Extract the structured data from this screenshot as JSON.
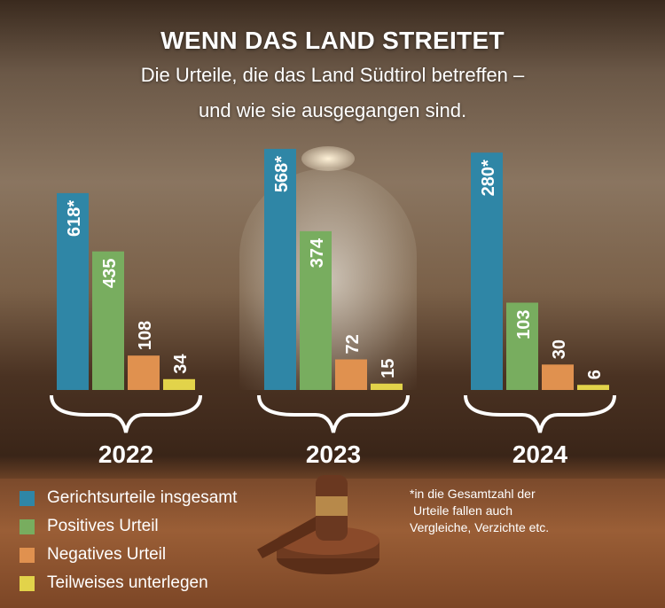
{
  "header": {
    "title": "WENN DAS LAND STREITET",
    "subtitle_line1": "Die Urteile, die das Land Südtirol betreffen –",
    "subtitle_line2": "und wie sie ausgegangen sind."
  },
  "chart_data": {
    "type": "bar",
    "series": [
      {
        "name": "Gerichtsurteile insgesamt",
        "color": "#2f86a6"
      },
      {
        "name": "Positives Urteil",
        "color": "#78ad5f"
      },
      {
        "name": "Negatives Urteil",
        "color": "#e0914f"
      },
      {
        "name": "Teilweises unterlegen",
        "color": "#e2d34a"
      }
    ],
    "groups": [
      {
        "year": "2022",
        "values": [
          618,
          435,
          108,
          34
        ],
        "labels": [
          "618*",
          "435",
          "108",
          "34"
        ],
        "ylim": [
          0,
          793
        ]
      },
      {
        "year": "2023",
        "values": [
          568,
          374,
          72,
          15
        ],
        "labels": [
          "568*",
          "374",
          "72",
          "15"
        ],
        "ylim": [
          0,
          595
        ]
      },
      {
        "year": "2024",
        "values": [
          280,
          103,
          30,
          6
        ],
        "labels": [
          "280*",
          "103",
          "30",
          "6"
        ],
        "ylim": [
          0,
          298
        ]
      }
    ]
  },
  "legend": [
    "Gerichtsurteile insgesamt",
    "Positives Urteil",
    "Negatives Urteil",
    "Teilweises unterlegen"
  ],
  "footnote": [
    "*in die Gesamtzahl der",
    "Urteile fallen auch",
    "Vergleiche, Verzichte etc."
  ]
}
